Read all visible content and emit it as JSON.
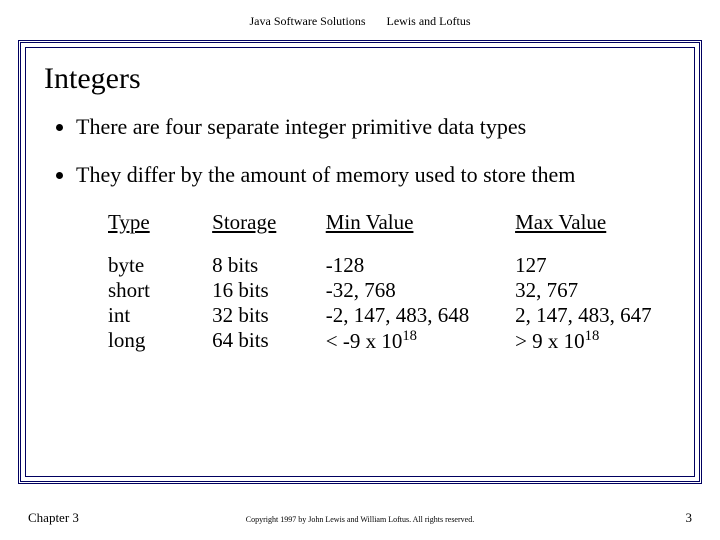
{
  "header": {
    "book_title": "Java Software Solutions",
    "authors": "Lewis and Loftus"
  },
  "slide": {
    "title": "Integers",
    "bullets": [
      "There are four separate integer primitive data types",
      "They differ by the amount of memory used to store them"
    ],
    "table": {
      "headers": {
        "type": "Type",
        "storage": "Storage",
        "min": "Min Value",
        "max": "Max Value"
      },
      "rows": [
        {
          "type": "byte",
          "storage": "8 bits",
          "min": "-128",
          "max": "127"
        },
        {
          "type": "short",
          "storage": "16 bits",
          "min": "-32, 768",
          "max": "32, 767"
        },
        {
          "type": "int",
          "storage": "32 bits",
          "min": "-2, 147, 483, 648",
          "max": "2, 147, 483, 647"
        },
        {
          "type": "long",
          "storage": "64 bits",
          "min_prefix": "< -9 x 10",
          "min_exp": "18",
          "max_prefix": "> 9 x 10",
          "max_exp": "18"
        }
      ]
    }
  },
  "footer": {
    "chapter": "Chapter 3",
    "copyright": "Copyright 1997 by John Lewis and William Loftus. All rights reserved.",
    "page_number": "3"
  },
  "colors": {
    "frame": "#000060",
    "text": "#000000",
    "background": "#ffffff"
  }
}
